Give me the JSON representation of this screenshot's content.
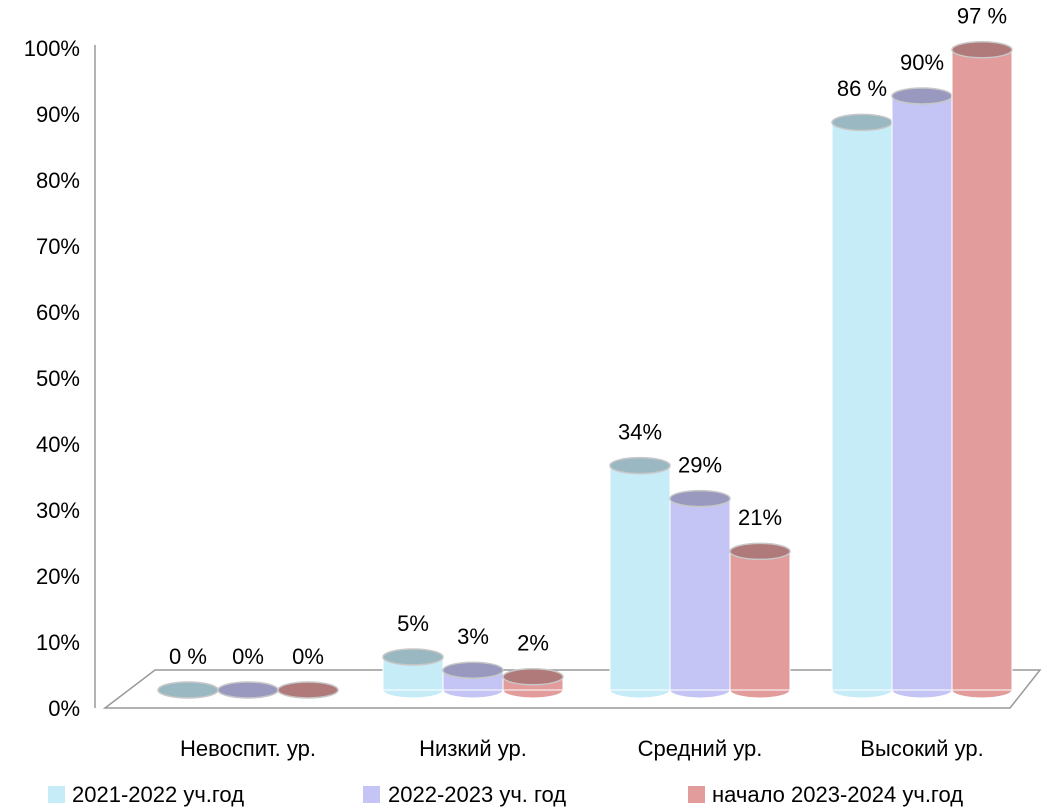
{
  "chart_data": {
    "type": "bar3d",
    "categories": [
      "Невоспит. ур.",
      "Низкий ур.",
      "Средний ур.",
      "Высокий ур."
    ],
    "series": [
      {
        "name": "2021-2022 уч.год",
        "color": "#c6ecf7",
        "values": [
          0,
          5,
          34,
          86
        ],
        "value_labels": [
          "0 %",
          "5%",
          "34%",
          "86 %"
        ]
      },
      {
        "name": "2022-2023 уч. год",
        "color": "#c4c4f5",
        "values": [
          0,
          3,
          29,
          90
        ],
        "value_labels": [
          "0%",
          "3%",
          "29%",
          "90%"
        ]
      },
      {
        "name": "начало 2023-2024 уч.год",
        "color": "#e39c9c",
        "values": [
          0,
          2,
          21,
          97
        ],
        "value_labels": [
          "0%",
          "2%",
          "21%",
          "97 %"
        ]
      }
    ],
    "ylim": [
      0,
      100
    ],
    "yticks": [
      {
        "value": 0,
        "label": "0%"
      },
      {
        "value": 10,
        "label": "10%"
      },
      {
        "value": 20,
        "label": "20%"
      },
      {
        "value": 30,
        "label": "30%"
      },
      {
        "value": 40,
        "label": "40%"
      },
      {
        "value": 50,
        "label": "50%"
      },
      {
        "value": 60,
        "label": "60%"
      },
      {
        "value": 70,
        "label": "70%"
      },
      {
        "value": 80,
        "label": "80%"
      },
      {
        "value": 90,
        "label": "90%"
      },
      {
        "value": 100,
        "label": "100%"
      }
    ]
  }
}
